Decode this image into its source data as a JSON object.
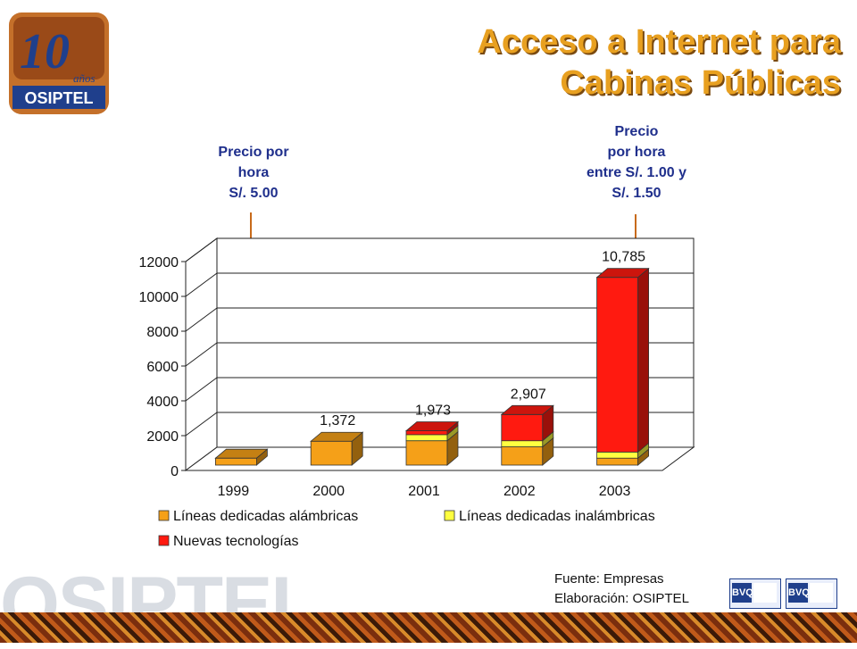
{
  "header": {
    "title_line1": "Acceso a Internet para",
    "title_line2": "Cabinas Públicas",
    "logo_number": "10",
    "logo_sub": "años",
    "logo_text": "OSIPTEL"
  },
  "annotations": {
    "left": [
      "Precio por",
      "hora",
      "S/. 5.00"
    ],
    "right": [
      "Precio",
      "por hora",
      "entre S/. 1.00 y",
      "S/. 1.50"
    ]
  },
  "chart_data": {
    "type": "bar",
    "stacked": true,
    "categories": [
      "1999",
      "2000",
      "2001",
      "2002",
      "2003"
    ],
    "series": [
      {
        "name": "Líneas dedicadas alámbricas",
        "values": [
          400,
          1372,
          1400,
          1050,
          400
        ]
      },
      {
        "name": "Líneas dedicadas inalámbricas",
        "values": [
          0,
          0,
          350,
          350,
          350
        ]
      },
      {
        "name": "Nuevas tecnologías",
        "values": [
          0,
          0,
          223,
          1507,
          10035
        ]
      }
    ],
    "data_labels": [
      "",
      "1,372",
      "1,973",
      "2,907",
      "10,785"
    ],
    "y_ticks": [
      "0",
      "2000",
      "4000",
      "6000",
      "8000",
      "10000",
      "12000"
    ],
    "ylim": [
      0,
      12000
    ],
    "colors": {
      "alambricas": "#f5a018",
      "inalambricas": "#ffff40",
      "nuevas": "#ff1a10"
    },
    "legend_position": "bottom",
    "grid": true
  },
  "footer": {
    "source": "Fuente: Empresas",
    "elaboration": "Elaboración: OSIPTEL",
    "watermark": "OSIPTEL",
    "badge1": "BVQI",
    "badge2": "BVQI"
  }
}
